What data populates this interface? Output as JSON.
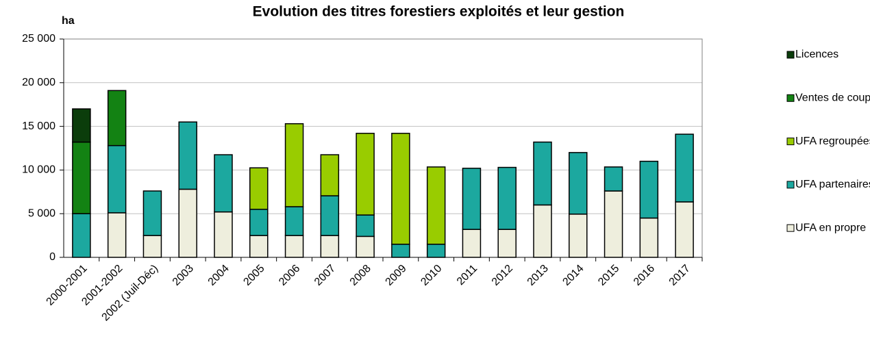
{
  "chart_data": {
    "type": "bar",
    "stacked": true,
    "title": "Evolution des titres forestiers exploités et leur gestion",
    "y_label": "ha",
    "categories": [
      "2000-2001",
      "2001-2002",
      "2002 (Juil-Déc)",
      "2003",
      "2004",
      "2005",
      "2006",
      "2007",
      "2008",
      "2009",
      "2010",
      "2011",
      "2012",
      "2013",
      "2014",
      "2015",
      "2016",
      "2017"
    ],
    "series": [
      {
        "name": "UFA en propre",
        "color": "#eeeedd",
        "values": [
          0,
          5100,
          2500,
          7800,
          5200,
          2500,
          2500,
          2500,
          2400,
          0,
          0,
          3200,
          3200,
          6000,
          4950,
          7600,
          4500,
          6350
        ]
      },
      {
        "name": "UFA partenaires",
        "color": "#1ca89f",
        "values": [
          5000,
          7700,
          5100,
          7700,
          6550,
          3000,
          3300,
          4550,
          2450,
          1500,
          1500,
          7000,
          7100,
          7200,
          7050,
          2750,
          6500,
          7750
        ]
      },
      {
        "name": "UFA regroupées",
        "color": "#99cc00",
        "values": [
          0,
          0,
          0,
          0,
          0,
          4750,
          9500,
          4700,
          9350,
          12700,
          8850,
          0,
          0,
          0,
          0,
          0,
          0,
          0
        ]
      },
      {
        "name": "Ventes de coupe",
        "color": "#138213",
        "values": [
          8200,
          6300,
          0,
          0,
          0,
          0,
          0,
          0,
          0,
          0,
          0,
          0,
          0,
          0,
          0,
          0,
          0,
          0
        ]
      },
      {
        "name": "Licences",
        "color": "#0b3d0b",
        "values": [
          3800,
          0,
          0,
          0,
          0,
          0,
          0,
          0,
          0,
          0,
          0,
          0,
          0,
          0,
          0,
          0,
          0,
          0
        ]
      }
    ],
    "ylim": [
      0,
      25000
    ],
    "yticks": [
      0,
      {
        "value": 5000,
        "label": "5 000"
      },
      {
        "value": 10000,
        "label": "10 000"
      },
      {
        "value": 15000,
        "label": "15 000"
      },
      {
        "value": 20000,
        "label": "20 000"
      },
      {
        "value": 25000,
        "label": "25 000"
      }
    ],
    "grid": true,
    "legend": "right"
  }
}
